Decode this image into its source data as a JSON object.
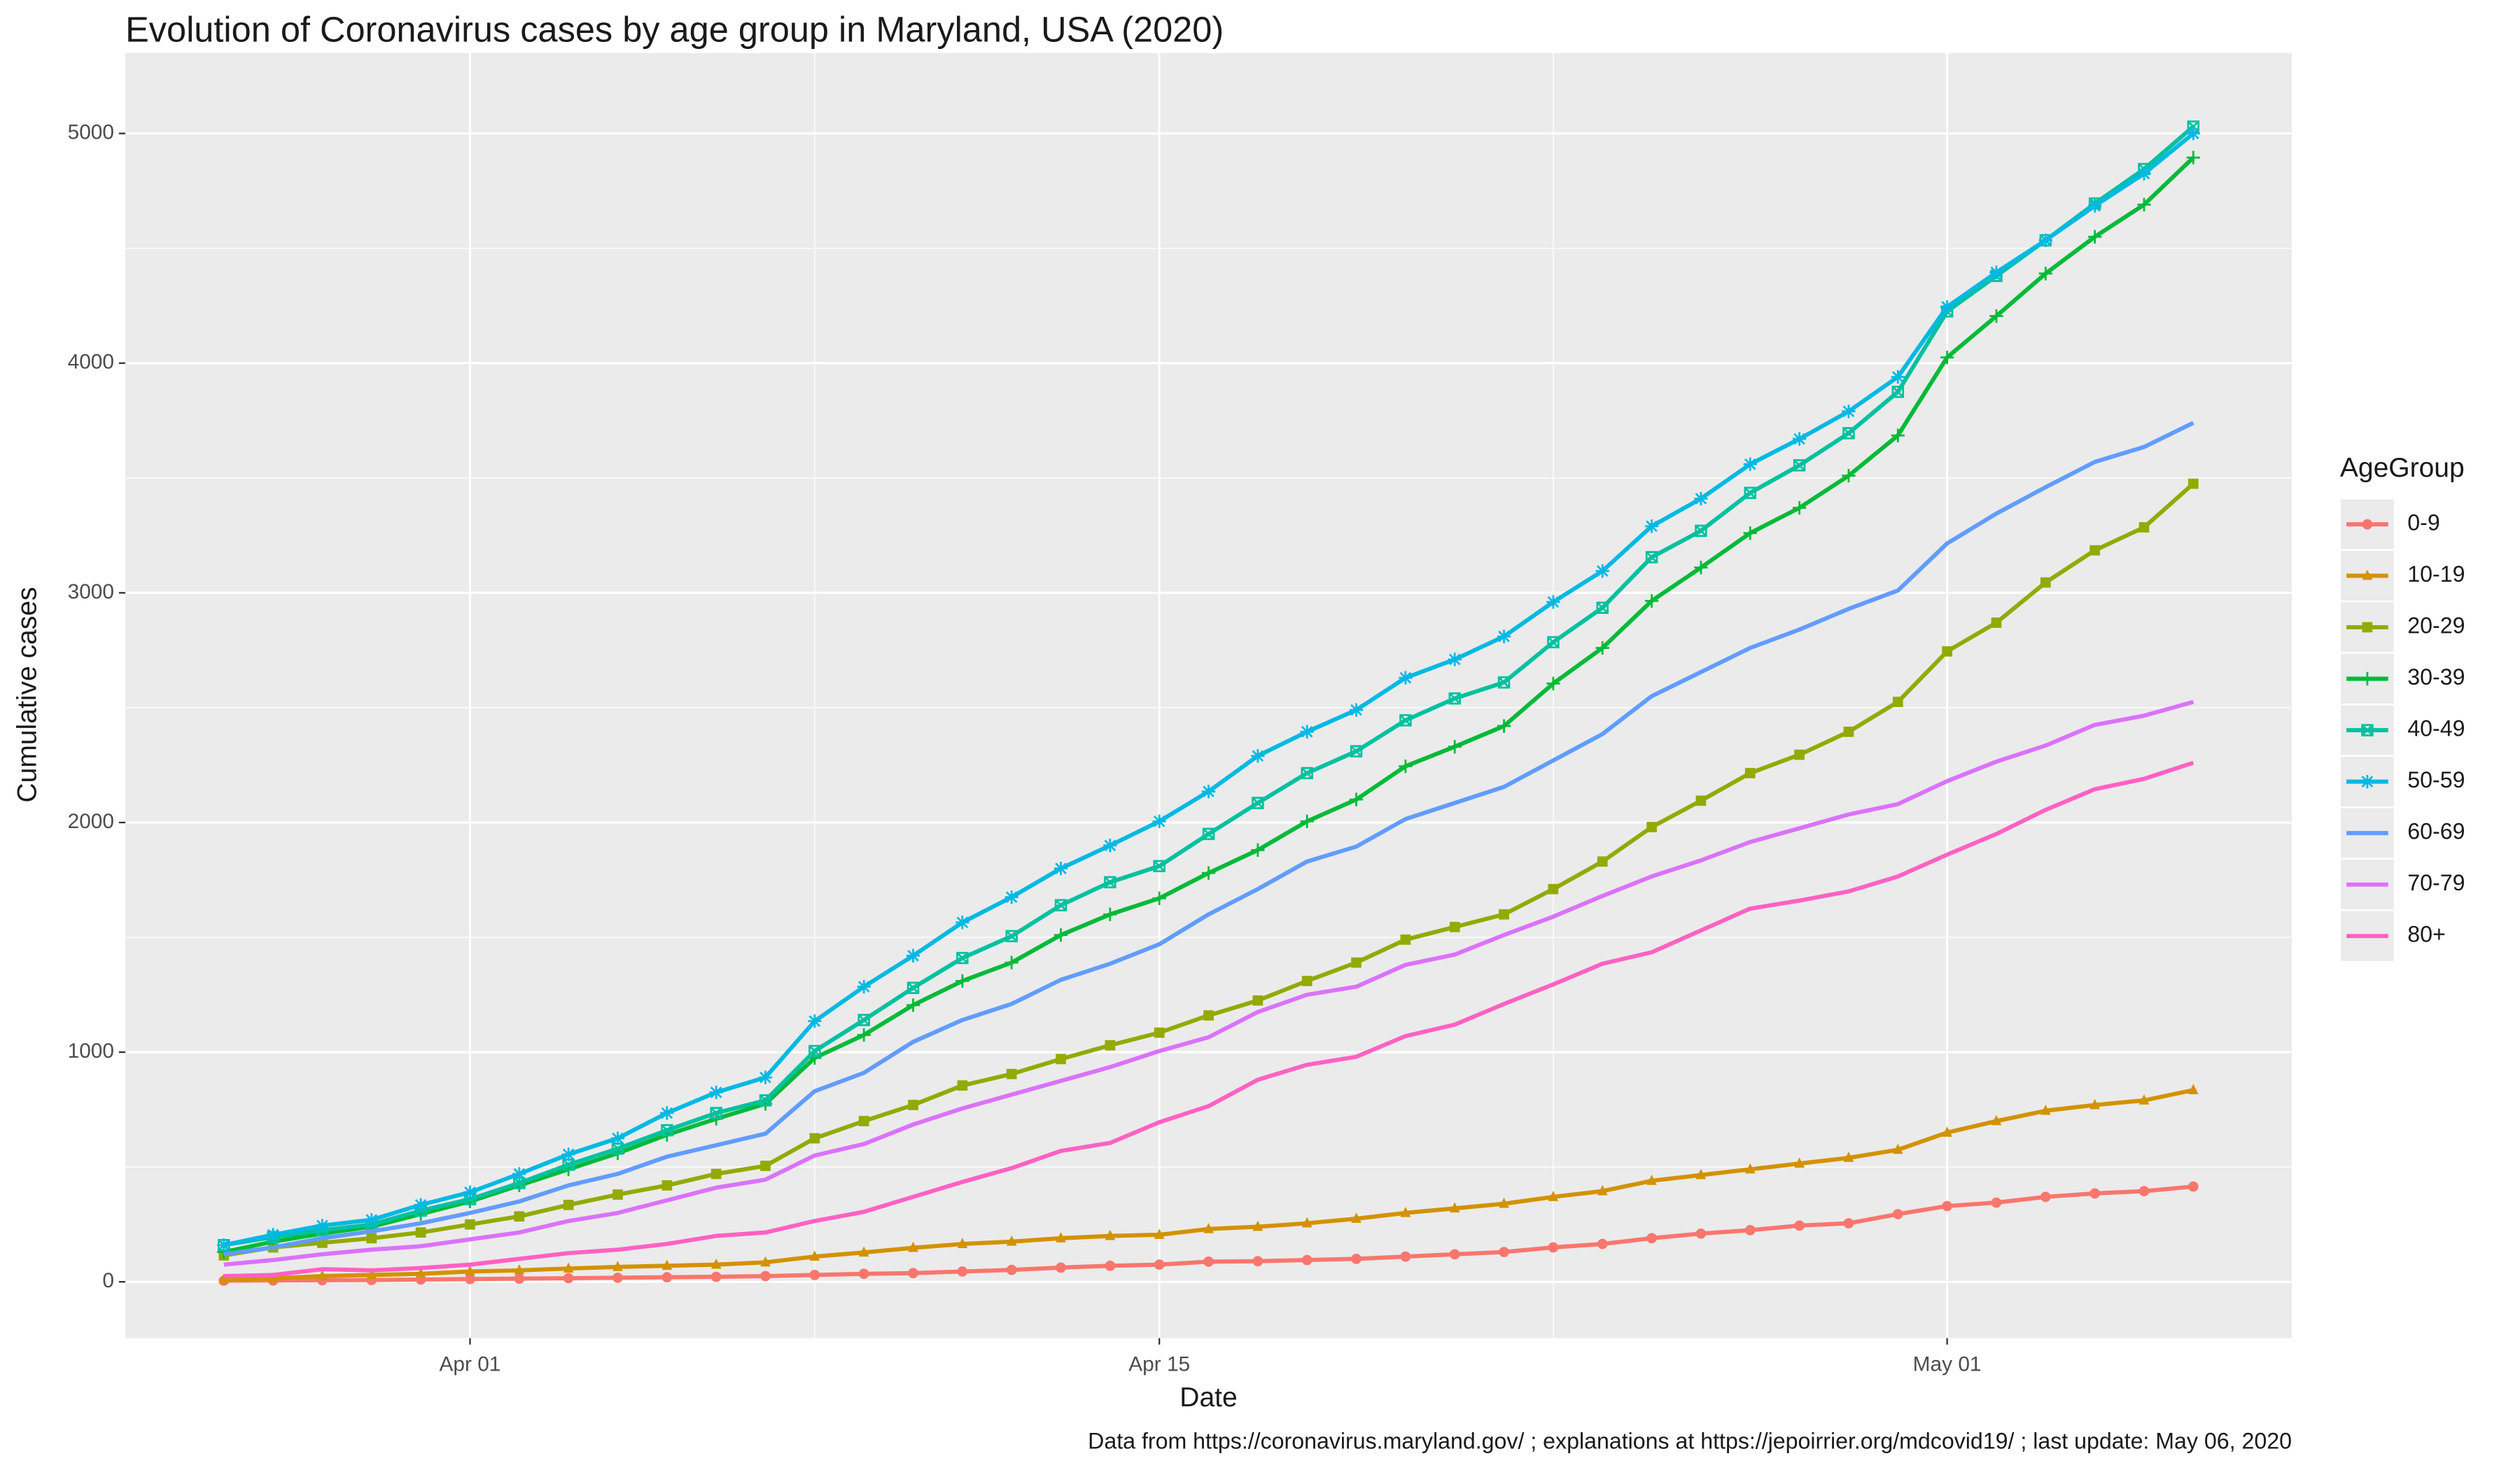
{
  "chart_data": {
    "type": "line",
    "title": "Evolution of Coronavirus cases by age group in Maryland, USA (2020)",
    "x_label": "Date",
    "y_label": "Cumulative cases",
    "legend_title": "AgeGroup",
    "caption": "Data from https://coronavirus.maryland.gov/ ; explanations at https://jepoirrier.org/mdcovid19/ ; last update: May 06, 2020",
    "x": [
      "2020-03-27",
      "2020-03-28",
      "2020-03-29",
      "2020-03-30",
      "2020-03-31",
      "2020-04-01",
      "2020-04-02",
      "2020-04-03",
      "2020-04-04",
      "2020-04-05",
      "2020-04-06",
      "2020-04-07",
      "2020-04-08",
      "2020-04-09",
      "2020-04-10",
      "2020-04-11",
      "2020-04-12",
      "2020-04-13",
      "2020-04-14",
      "2020-04-15",
      "2020-04-16",
      "2020-04-17",
      "2020-04-18",
      "2020-04-19",
      "2020-04-20",
      "2020-04-21",
      "2020-04-22",
      "2020-04-23",
      "2020-04-24",
      "2020-04-25",
      "2020-04-26",
      "2020-04-27",
      "2020-04-28",
      "2020-04-29",
      "2020-04-30",
      "2020-05-01",
      "2020-05-02",
      "2020-05-03",
      "2020-05-04",
      "2020-05-05",
      "2020-05-06"
    ],
    "xlim": [
      "2020-03-25",
      "2020-05-08"
    ],
    "xticks": [
      {
        "value": "2020-04-01",
        "label": "Apr 01"
      },
      {
        "value": "2020-04-15",
        "label": "Apr 15"
      },
      {
        "value": "2020-05-01",
        "label": "May 01"
      }
    ],
    "ylim": [
      -245,
      5350
    ],
    "yticks": [
      0,
      1000,
      2000,
      3000,
      4000,
      5000
    ],
    "grid": true,
    "legend": "right",
    "series": [
      {
        "name": "0-9",
        "color": "#F8766D",
        "shape": "circle",
        "values": [
          5,
          6,
          7,
          8,
          10,
          12,
          14,
          16,
          18,
          20,
          22,
          25,
          30,
          35,
          38,
          45,
          52,
          62,
          70,
          75,
          88,
          90,
          95,
          100,
          110,
          120,
          130,
          150,
          165,
          190,
          210,
          225,
          245,
          255,
          295,
          330,
          345,
          370,
          385,
          395,
          415
        ]
      },
      {
        "name": "10-19",
        "color": "#D39200",
        "shape": "triangle",
        "values": [
          10,
          15,
          25,
          30,
          35,
          45,
          50,
          58,
          65,
          70,
          75,
          85,
          110,
          128,
          148,
          165,
          175,
          190,
          200,
          205,
          230,
          240,
          255,
          275,
          300,
          320,
          340,
          370,
          395,
          440,
          465,
          490,
          515,
          540,
          575,
          650,
          700,
          745,
          770,
          790,
          835
        ]
      },
      {
        "name": "20-29",
        "color": "#93AA00",
        "shape": "square",
        "values": [
          115,
          150,
          170,
          190,
          215,
          250,
          285,
          335,
          380,
          420,
          470,
          505,
          625,
          700,
          770,
          855,
          905,
          970,
          1030,
          1085,
          1160,
          1225,
          1310,
          1390,
          1490,
          1545,
          1600,
          1710,
          1830,
          1980,
          2095,
          2215,
          2295,
          2395,
          2525,
          2745,
          2870,
          3045,
          3185,
          3285,
          3475
        ]
      },
      {
        "name": "30-39",
        "color": "#00BA38",
        "shape": "plus",
        "values": [
          130,
          175,
          210,
          240,
          295,
          350,
          420,
          490,
          560,
          640,
          710,
          775,
          975,
          1075,
          1205,
          1310,
          1390,
          1510,
          1600,
          1670,
          1780,
          1880,
          2005,
          2100,
          2245,
          2330,
          2420,
          2605,
          2760,
          2965,
          3110,
          3260,
          3370,
          3510,
          3685,
          4025,
          4205,
          4390,
          4550,
          4690,
          4895
        ]
      },
      {
        "name": "40-49",
        "color": "#00C19F",
        "shape": "square-cross",
        "values": [
          160,
          195,
          225,
          250,
          310,
          360,
          430,
          510,
          580,
          660,
          735,
          790,
          1005,
          1140,
          1280,
          1410,
          1505,
          1640,
          1740,
          1810,
          1950,
          2085,
          2215,
          2310,
          2445,
          2540,
          2610,
          2785,
          2935,
          3155,
          3270,
          3435,
          3555,
          3695,
          3875,
          4225,
          4380,
          4535,
          4695,
          4845,
          5030
        ]
      },
      {
        "name": "50-59",
        "color": "#00B9E3",
        "shape": "asterisk",
        "values": [
          160,
          205,
          245,
          270,
          335,
          390,
          470,
          555,
          625,
          735,
          825,
          890,
          1135,
          1285,
          1420,
          1565,
          1675,
          1800,
          1900,
          2005,
          2135,
          2290,
          2395,
          2490,
          2630,
          2710,
          2810,
          2960,
          3095,
          3290,
          3410,
          3560,
          3670,
          3790,
          3940,
          4245,
          4395,
          4535,
          4685,
          4825,
          5000
        ]
      },
      {
        "name": "60-69",
        "color": "#619CFF",
        "values": [
          120,
          150,
          190,
          220,
          255,
          300,
          350,
          420,
          470,
          545,
          595,
          645,
          830,
          910,
          1045,
          1140,
          1210,
          1315,
          1385,
          1470,
          1600,
          1710,
          1830,
          1895,
          2015,
          2085,
          2155,
          2270,
          2385,
          2550,
          2655,
          2760,
          2840,
          2930,
          3010,
          3215,
          3345,
          3460,
          3570,
          3635,
          3740
        ]
      },
      {
        "name": "70-79",
        "color": "#DB72FB",
        "values": [
          75,
          95,
          120,
          140,
          155,
          185,
          215,
          265,
          300,
          355,
          410,
          445,
          550,
          600,
          685,
          755,
          815,
          875,
          935,
          1005,
          1065,
          1175,
          1250,
          1285,
          1380,
          1425,
          1510,
          1590,
          1680,
          1765,
          1835,
          1915,
          1975,
          2035,
          2080,
          2180,
          2265,
          2335,
          2425,
          2465,
          2525
        ]
      },
      {
        "name": "80+",
        "color": "#FF61C3",
        "values": [
          25,
          30,
          55,
          50,
          60,
          75,
          100,
          125,
          140,
          165,
          200,
          215,
          265,
          305,
          370,
          435,
          495,
          570,
          605,
          695,
          765,
          880,
          945,
          980,
          1070,
          1120,
          1210,
          1295,
          1385,
          1435,
          1530,
          1625,
          1660,
          1700,
          1765,
          1860,
          1950,
          2055,
          2145,
          2190,
          2260
        ]
      }
    ]
  }
}
